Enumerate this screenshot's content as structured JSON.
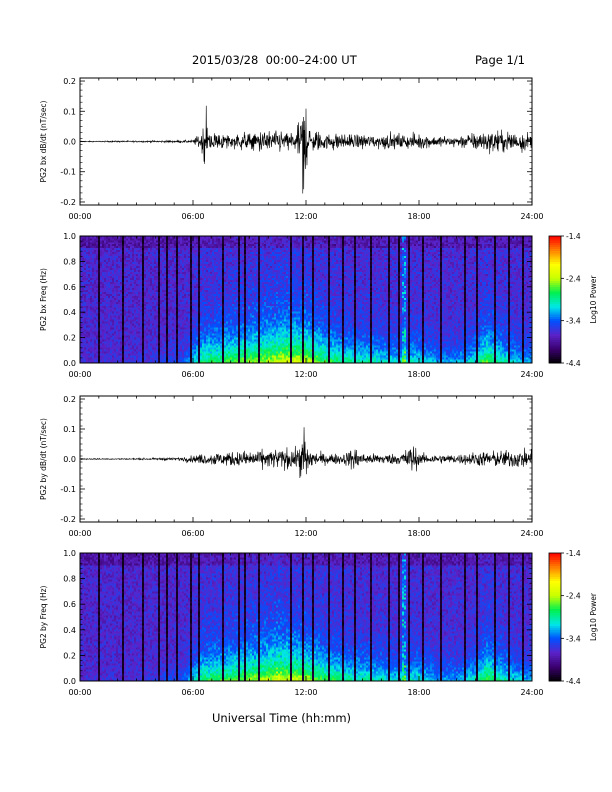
{
  "header": {
    "title": "2015/03/28  00:00–24:00 UT",
    "page": "Page 1/1"
  },
  "bottom_xlabel": "Universal Time (hh:mm)",
  "colors": {
    "trace": "#000000",
    "cmap": [
      "#000000",
      "#3a006e",
      "#5b22c8",
      "#0050ff",
      "#00e8e8",
      "#00f050",
      "#c8ff00",
      "#ffff00",
      "#ff8000",
      "#ff0000"
    ]
  },
  "chart_data": [
    {
      "type": "line",
      "ylabel": "PG2 bx dB/dt (nT/sec)",
      "xlim": [
        0,
        24
      ],
      "ylim": [
        -0.21,
        0.21
      ],
      "xticks": [
        "00:00",
        "06:00",
        "12:00",
        "18:00",
        "24:00"
      ],
      "yticks": [
        "-0.2",
        "-0.1",
        "0.0",
        "0.1",
        "0.2"
      ],
      "ytick_values": [
        -0.2,
        -0.1,
        0.0,
        0.1,
        0.2
      ],
      "series": [
        {
          "x": [
            0,
            1,
            2,
            3,
            4,
            5,
            6,
            6.4,
            6.7,
            7,
            8,
            9,
            10,
            11,
            11.5,
            11.9,
            12.1,
            12.5,
            13,
            14,
            15,
            16,
            17,
            18,
            19,
            20,
            21,
            22,
            23,
            24
          ],
          "envelope": [
            0.003,
            0.003,
            0.004,
            0.004,
            0.005,
            0.006,
            0.007,
            0.05,
            0.12,
            0.05,
            0.04,
            0.05,
            0.06,
            0.06,
            0.05,
            0.2,
            0.08,
            0.06,
            0.05,
            0.04,
            0.04,
            0.04,
            0.04,
            0.04,
            0.03,
            0.03,
            0.05,
            0.06,
            0.06,
            0.05
          ]
        }
      ]
    },
    {
      "type": "heatmap",
      "ylabel": "PG2 bx Freq (Hz)",
      "xlim": [
        0,
        24
      ],
      "ylim": [
        0,
        1.0
      ],
      "xticks": [
        "00:00",
        "06:00",
        "12:00",
        "18:00",
        "24:00"
      ],
      "yticks": [
        "0.0",
        "0.2",
        "0.4",
        "0.6",
        "0.8",
        "1.0"
      ],
      "ytick_values": [
        0,
        0.2,
        0.4,
        0.6,
        0.8,
        1.0
      ],
      "colorbar": {
        "label": "Log10 Power",
        "range": [
          -4.4,
          -1.4
        ],
        "ticks": [
          "-1.4",
          "-2.4",
          "-3.4",
          "-4.4"
        ],
        "tick_values": [
          -1.4,
          -2.4,
          -3.4,
          -4.4
        ]
      },
      "activity": {
        "x": [
          0,
          2,
          4,
          5.5,
          6.5,
          7.5,
          9,
          10,
          11,
          12,
          13,
          14,
          15,
          16,
          17,
          18,
          19,
          20,
          21,
          21.6,
          22.2,
          23,
          24
        ],
        "level": [
          0.05,
          0.05,
          0.1,
          0.2,
          0.65,
          0.7,
          0.8,
          0.85,
          0.95,
          0.9,
          0.7,
          0.6,
          0.55,
          0.5,
          0.45,
          0.5,
          0.35,
          0.35,
          0.5,
          0.75,
          0.6,
          0.45,
          0.35
        ]
      },
      "data_gaps_hours": [
        1.0,
        2.3,
        3.3,
        4.2,
        4.6,
        5.2,
        5.9,
        6.3,
        7.6,
        8.4,
        8.8,
        9.5,
        10.3,
        11.2,
        11.8,
        12.4,
        13.2,
        14.0,
        14.6,
        15.5,
        16.4,
        16.9,
        17.5,
        18.2,
        19.2,
        20.4,
        21.1,
        22.0,
        22.8,
        23.5
      ],
      "bright_streaks_hours": [
        11.8,
        17.2
      ]
    },
    {
      "type": "line",
      "ylabel": "PG2 by dB/dt (nT/sec)",
      "xlim": [
        0,
        24
      ],
      "ylim": [
        -0.21,
        0.21
      ],
      "xticks": [
        "00:00",
        "06:00",
        "12:00",
        "18:00",
        "24:00"
      ],
      "yticks": [
        "-0.2",
        "-0.1",
        "0.0",
        "0.1",
        "0.2"
      ],
      "ytick_values": [
        -0.2,
        -0.1,
        0.0,
        0.1,
        0.2
      ],
      "series": [
        {
          "x": [
            0,
            1,
            2,
            3,
            4,
            5,
            6,
            7,
            8,
            9,
            10,
            11,
            11.5,
            11.95,
            12.1,
            12.5,
            13,
            14,
            14.6,
            15,
            16,
            17,
            17.7,
            18,
            19,
            20,
            21,
            22,
            23,
            24
          ],
          "envelope": [
            0.003,
            0.003,
            0.003,
            0.004,
            0.005,
            0.007,
            0.02,
            0.035,
            0.04,
            0.045,
            0.05,
            0.06,
            0.05,
            0.16,
            0.08,
            0.04,
            0.03,
            0.03,
            0.07,
            0.03,
            0.03,
            0.03,
            0.09,
            0.03,
            0.025,
            0.025,
            0.04,
            0.045,
            0.05,
            0.05
          ]
        }
      ]
    },
    {
      "type": "heatmap",
      "ylabel": "PG2 by Freq (Hz)",
      "xlim": [
        0,
        24
      ],
      "ylim": [
        0,
        1.0
      ],
      "xticks": [
        "00:00",
        "06:00",
        "12:00",
        "18:00",
        "24:00"
      ],
      "yticks": [
        "0.0",
        "0.2",
        "0.4",
        "0.6",
        "0.8",
        "1.0"
      ],
      "ytick_values": [
        0,
        0.2,
        0.4,
        0.6,
        0.8,
        1.0
      ],
      "colorbar": {
        "label": "Log10 Power",
        "range": [
          -4.4,
          -1.4
        ],
        "ticks": [
          "-1.4",
          "-2.4",
          "-3.4",
          "-4.4"
        ],
        "tick_values": [
          -1.4,
          -2.4,
          -3.4,
          -4.4
        ]
      },
      "activity": {
        "x": [
          0,
          2,
          4,
          5.5,
          6.5,
          7.5,
          9,
          10,
          10.5,
          11,
          12,
          13,
          14,
          15,
          16,
          17,
          18,
          19,
          20,
          21,
          21.6,
          22.2,
          23,
          24
        ],
        "level": [
          0.05,
          0.05,
          0.1,
          0.2,
          0.65,
          0.7,
          0.8,
          0.85,
          0.95,
          0.9,
          0.85,
          0.7,
          0.6,
          0.55,
          0.5,
          0.45,
          0.5,
          0.35,
          0.35,
          0.5,
          0.75,
          0.6,
          0.45,
          0.35
        ]
      },
      "data_gaps_hours": [
        1.0,
        2.3,
        3.3,
        4.2,
        4.6,
        5.2,
        5.9,
        6.3,
        7.6,
        8.4,
        8.8,
        9.5,
        10.3,
        11.2,
        11.8,
        12.4,
        13.2,
        14.0,
        14.6,
        15.5,
        16.4,
        16.9,
        17.5,
        18.2,
        19.2,
        20.4,
        21.1,
        22.0,
        22.8,
        23.5
      ],
      "bright_streaks_hours": [
        17.2
      ]
    }
  ]
}
